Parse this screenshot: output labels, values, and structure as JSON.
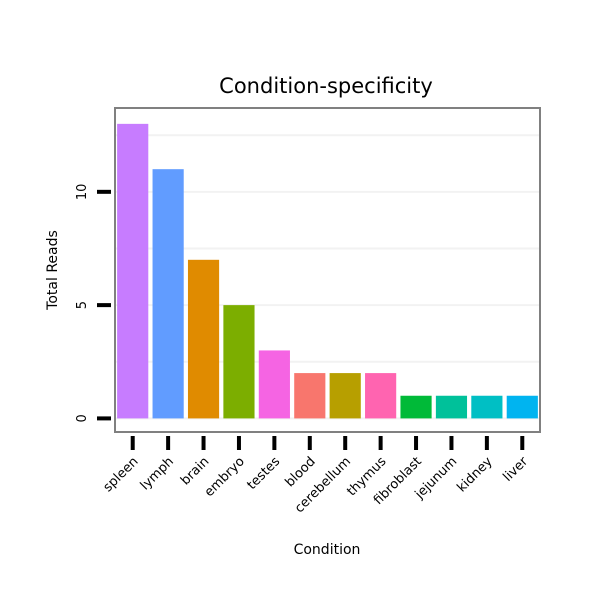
{
  "chart_data": {
    "type": "bar",
    "title": "Condition-specificity",
    "xlabel": "Condition",
    "ylabel": "Total Reads",
    "categories": [
      "spleen",
      "lymph",
      "brain",
      "embryo",
      "testes",
      "blood",
      "cerebellum",
      "thymus",
      "fibroblast",
      "jejunum",
      "kidney",
      "liver"
    ],
    "values": [
      13,
      11,
      7,
      5,
      3,
      2,
      2,
      2,
      1,
      1,
      1,
      1
    ],
    "colors": [
      "#C77CFF",
      "#619CFF",
      "#E08B00",
      "#7CAE00",
      "#F564E3",
      "#F8766D",
      "#B79F00",
      "#FF64B0",
      "#00BA38",
      "#00C19A",
      "#00BFC4",
      "#00B4F0"
    ],
    "yticks": [
      0,
      5,
      10
    ],
    "ylim": [
      -0.6,
      13.7
    ],
    "grid": true,
    "legend": "none"
  }
}
